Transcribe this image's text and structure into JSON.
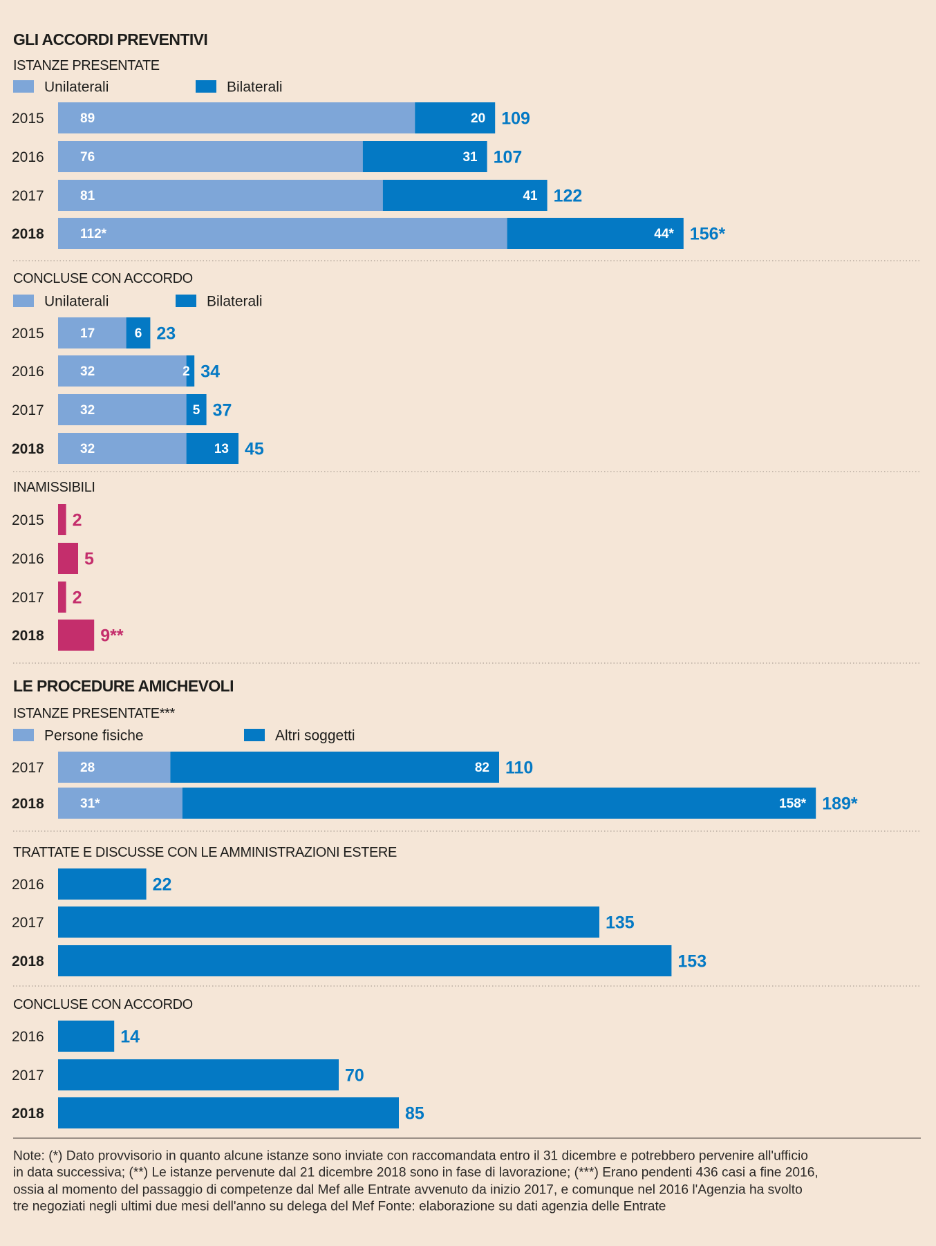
{
  "colors": {
    "background": "#f5e6d7",
    "light_blue": "#7ea6d8",
    "dark_blue": "#0479c4",
    "pink": "#c42e6c",
    "text": "#1d1d1b",
    "separator": "#b8aca0",
    "rule": "#9a8f87"
  },
  "chart_data": [
    {
      "type": "bar",
      "orientation": "horizontal",
      "stacked": true,
      "group_title": "GLI ACCORDI PREVENTIVI",
      "title": "ISTANZE PRESENTATE",
      "categories": [
        "2015",
        "2016",
        "2017",
        "2018"
      ],
      "bold_categories": [
        "2018"
      ],
      "series": [
        {
          "name": "Unilaterali",
          "color": "light_blue",
          "values": [
            89,
            76,
            81,
            112
          ],
          "labels": [
            "89",
            "76",
            "81",
            "112*"
          ]
        },
        {
          "name": "Bilaterali",
          "color": "dark_blue",
          "values": [
            20,
            31,
            41,
            44
          ],
          "labels": [
            "20",
            "31",
            "41",
            "44*"
          ]
        }
      ],
      "totals": [
        "109",
        "107",
        "122",
        "156*"
      ],
      "total_color": "dark_blue",
      "legend": "top-left"
    },
    {
      "type": "bar",
      "orientation": "horizontal",
      "stacked": true,
      "title": "CONCLUSE CON ACCORDO",
      "categories": [
        "2015",
        "2016",
        "2017",
        "2018"
      ],
      "bold_categories": [
        "2018"
      ],
      "series": [
        {
          "name": "Unilaterali",
          "color": "light_blue",
          "values": [
            17,
            32,
            32,
            32
          ],
          "labels": [
            "17",
            "32",
            "32",
            "32"
          ]
        },
        {
          "name": "Bilaterali",
          "color": "dark_blue",
          "values": [
            6,
            2,
            5,
            13
          ],
          "labels": [
            "6",
            "2",
            "5",
            "13"
          ]
        }
      ],
      "totals": [
        "23",
        "34",
        "37",
        "45"
      ],
      "total_color": "dark_blue",
      "legend": "top-left"
    },
    {
      "type": "bar",
      "orientation": "horizontal",
      "stacked": false,
      "title": "INAMISSIBILI",
      "categories": [
        "2015",
        "2016",
        "2017",
        "2018"
      ],
      "bold_categories": [
        "2018"
      ],
      "series": [
        {
          "name": "Inamissibili",
          "color": "pink",
          "values": [
            2,
            5,
            2,
            9
          ],
          "labels": [
            "2",
            "5",
            "2",
            "9**"
          ]
        }
      ],
      "totals": [
        "2",
        "5",
        "2",
        "9**"
      ],
      "total_color": "pink"
    },
    {
      "type": "bar",
      "orientation": "horizontal",
      "stacked": true,
      "group_title": "LE PROCEDURE AMICHEVOLI",
      "title": "ISTANZE PRESENTATE***",
      "categories": [
        "2017",
        "2018"
      ],
      "bold_categories": [
        "2018"
      ],
      "series": [
        {
          "name": "Persone fisiche",
          "color": "light_blue",
          "values": [
            28,
            31
          ],
          "labels": [
            "28",
            "31*"
          ]
        },
        {
          "name": "Altri soggetti",
          "color": "dark_blue",
          "values": [
            82,
            158
          ],
          "labels": [
            "82",
            "158*"
          ]
        }
      ],
      "totals": [
        "110",
        "189*"
      ],
      "total_color": "dark_blue",
      "legend": "top-left"
    },
    {
      "type": "bar",
      "orientation": "horizontal",
      "stacked": false,
      "title": "TRATTATE E DISCUSSE CON LE AMMINISTRAZIONI ESTERE",
      "categories": [
        "2016",
        "2017",
        "2018"
      ],
      "bold_categories": [
        "2018"
      ],
      "series": [
        {
          "name": "Trattate e discusse",
          "color": "dark_blue",
          "values": [
            22,
            135,
            153
          ],
          "labels": [
            "22",
            "135",
            "153"
          ]
        }
      ],
      "totals": [
        "22",
        "135",
        "153"
      ],
      "total_color": "dark_blue"
    },
    {
      "type": "bar",
      "orientation": "horizontal",
      "stacked": false,
      "title": "CONCLUSE CON ACCORDO",
      "categories": [
        "2016",
        "2017",
        "2018"
      ],
      "bold_categories": [
        "2018"
      ],
      "series": [
        {
          "name": "Concluse con accordo",
          "color": "dark_blue",
          "values": [
            14,
            70,
            85
          ],
          "labels": [
            "14",
            "70",
            "85"
          ]
        }
      ],
      "totals": [
        "14",
        "70",
        "85"
      ],
      "total_color": "dark_blue"
    }
  ],
  "notes": [
    "Note: (*) Dato provvisorio in quanto alcune istanze sono inviate con raccomandata entro il 31 dicembre e potrebbero pervenire all'ufficio",
    "in data successiva; (**) Le istanze pervenute dal 21 dicembre 2018 sono in fase di lavorazione; (***) Erano pendenti 436 casi a fine 2016,",
    "ossia al momento del passaggio di competenze dal Mef alle Entrate avvenuto da inizio 2017, e comunque nel 2016 l'Agenzia ha svolto",
    "tre negoziati negli ultimi due mesi dell'anno su delega del Mef Fonte: elaborazione su dati agenzia delle Entrate"
  ]
}
